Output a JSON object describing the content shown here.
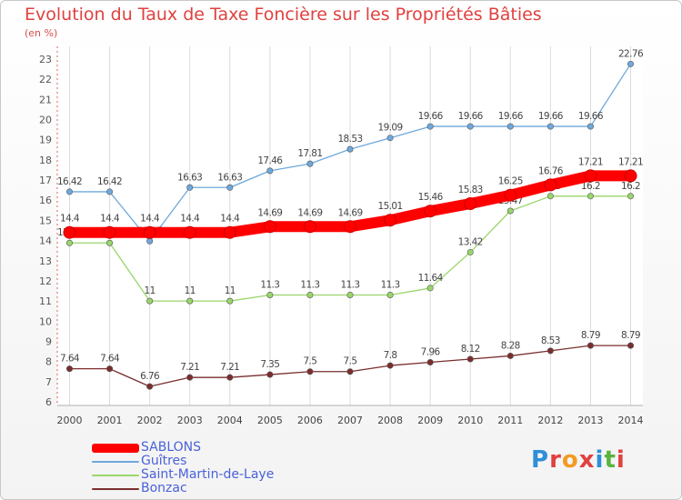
{
  "header": {
    "title": "Evolution du Taux de Taxe Foncière sur les Propriétés Bâties",
    "subtitle": "(en %)"
  },
  "logo": {
    "text": "Proxiti",
    "letter_colors": [
      "#2f8fd8",
      "#e0413f",
      "#f19b22",
      "#e0413f",
      "#2f8fd8",
      "#5bb33f",
      "#e0413f"
    ]
  },
  "chart_data": {
    "type": "line",
    "title": "Evolution du Taux de Taxe Foncière sur les Propriétés Bâties",
    "ylabel": "(en %)",
    "xlabel": "",
    "x": [
      "2000",
      "2001",
      "2002",
      "2003",
      "2004",
      "2005",
      "2006",
      "2007",
      "2008",
      "2009",
      "2010",
      "2011",
      "2012",
      "2013",
      "2014"
    ],
    "ylim": [
      6,
      23
    ],
    "yticks": [
      6,
      7,
      8,
      9,
      10,
      11,
      12,
      13,
      14,
      15,
      16,
      17,
      18,
      19,
      20,
      21,
      22,
      23
    ],
    "grid": "vertical",
    "legend_position": "bottom-left",
    "series": [
      {
        "name": "SABLONS",
        "color": "#ff0000",
        "values": [
          14.4,
          14.4,
          14.4,
          14.4,
          14.4,
          14.69,
          14.69,
          14.69,
          15.01,
          15.46,
          15.83,
          16.25,
          16.76,
          17.21,
          17.21
        ],
        "labels": [
          "14.4",
          "14.4",
          "14.4",
          "14.4",
          "14.4",
          "14.69",
          "14.69",
          "14.69",
          "15.01",
          "15.46",
          "15.83",
          "16.25",
          "16.76",
          "17.21",
          "17.21"
        ]
      },
      {
        "name": "Guîtres",
        "color": "#6fa8dc",
        "values": [
          16.42,
          16.42,
          13.97,
          16.63,
          16.63,
          17.46,
          17.81,
          18.53,
          19.09,
          19.66,
          19.66,
          19.66,
          19.66,
          19.66,
          22.76
        ],
        "labels": [
          "16.42",
          "16.42",
          "13.97",
          "16.63",
          "16.63",
          "17.46",
          "17.81",
          "18.53",
          "19.09",
          "19.66",
          "19.66",
          "19.66",
          "19.66",
          "19.66",
          "22.76"
        ]
      },
      {
        "name": "Saint-Martin-de-Laye",
        "color": "#9ad66b",
        "values": [
          13.88,
          13.88,
          11,
          11,
          11,
          11.3,
          11.3,
          11.3,
          11.3,
          11.64,
          13.42,
          15.47,
          16.2,
          16.2,
          16.2
        ],
        "labels": [
          "13.88",
          "13.88",
          "11",
          "11",
          "11",
          "11.3",
          "11.3",
          "11.3",
          "11.3",
          "11.64",
          "13.42",
          "15.47",
          "16.2",
          "16.2",
          "16.2"
        ]
      },
      {
        "name": "Bonzac",
        "color": "#7a2e2e",
        "values": [
          7.64,
          7.64,
          6.76,
          7.21,
          7.21,
          7.35,
          7.5,
          7.5,
          7.8,
          7.96,
          8.12,
          8.28,
          8.53,
          8.79,
          8.79
        ],
        "labels": [
          "7.64",
          "7.64",
          "6.76",
          "7.21",
          "7.21",
          "7.35",
          "7.5",
          "7.5",
          "7.8",
          "7.96",
          "8.12",
          "8.28",
          "8.53",
          "8.79",
          "8.79"
        ]
      }
    ]
  }
}
